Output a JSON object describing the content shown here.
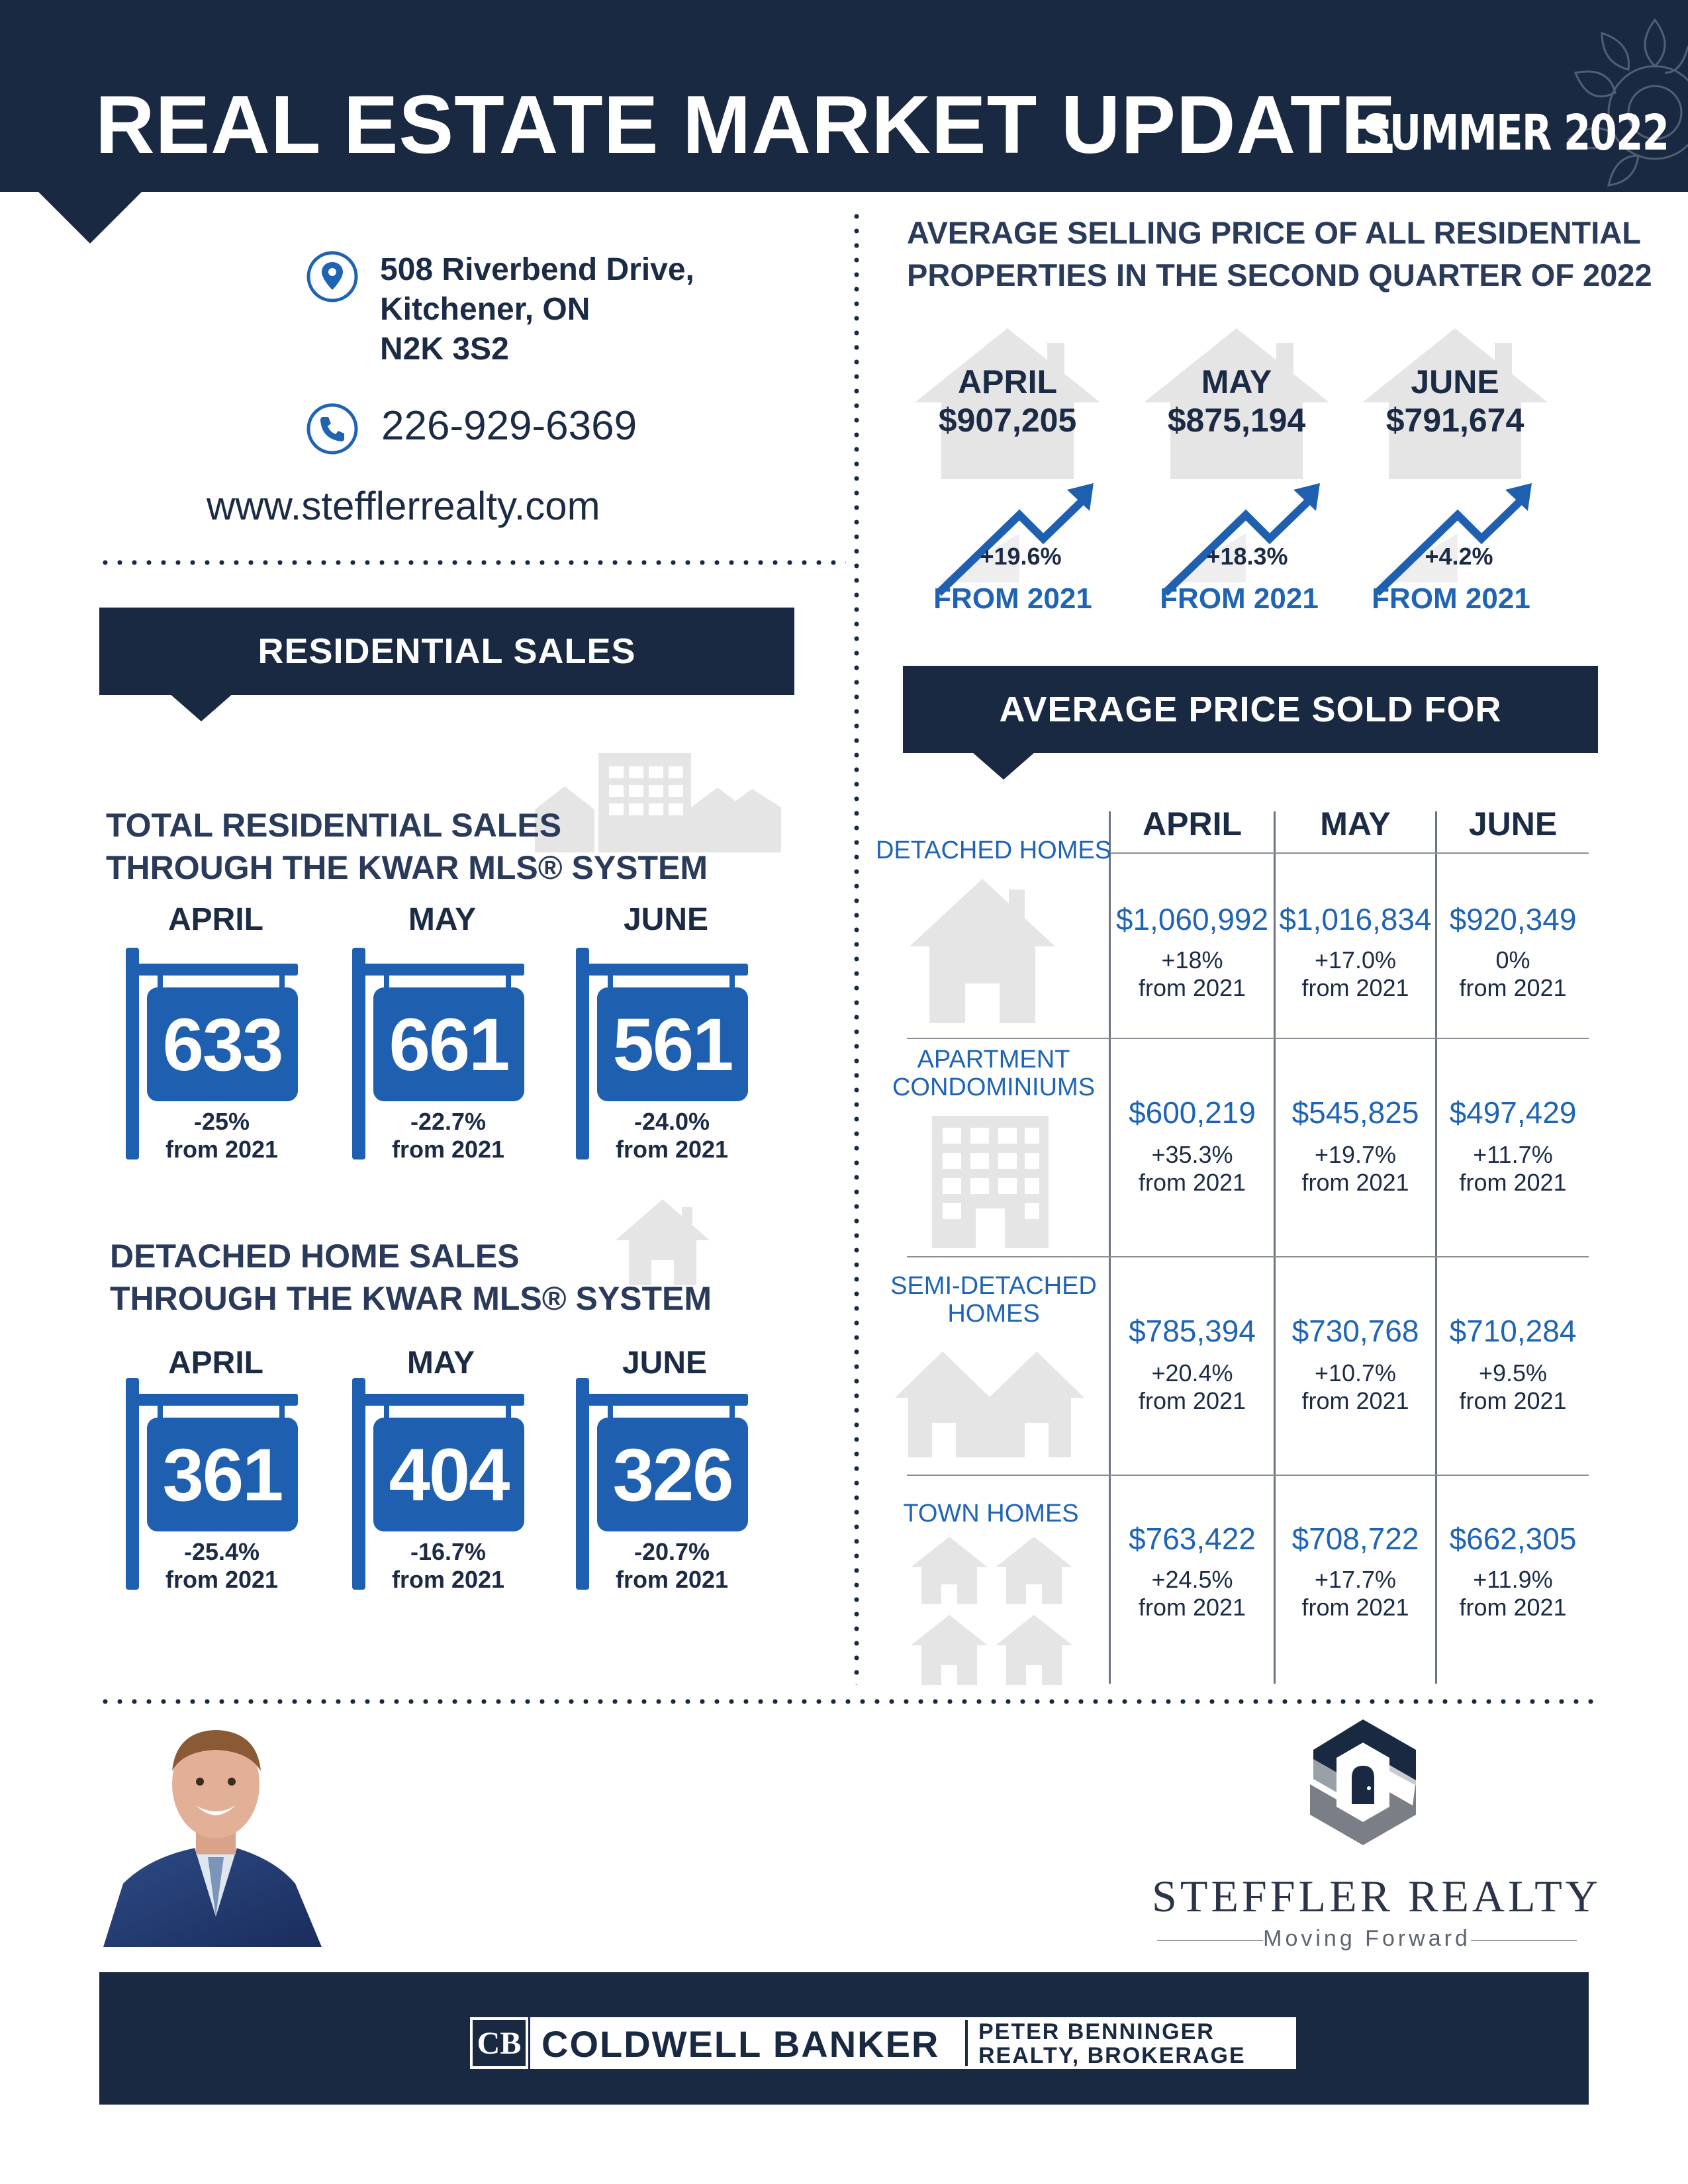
{
  "header": {
    "title": "REAL ESTATE MARKET UPDATE",
    "season": "SUMMER 2022"
  },
  "contact": {
    "address_line1": "508 Riverbend Drive,",
    "address_line2": "Kitchener, ON",
    "address_line3": "N2K 3S2",
    "phone": "226-929-6369",
    "website": "www.stefflerrealty.com"
  },
  "residential_sales": {
    "banner": "RESIDENTIAL SALES",
    "total": {
      "heading_line1": "TOTAL RESIDENTIAL SALES",
      "heading_line2": "THROUGH THE KWAR MLS® SYSTEM",
      "months": [
        {
          "label": "APRIL",
          "value": "633",
          "change": "-25%",
          "from": "from 2021"
        },
        {
          "label": "MAY",
          "value": "661",
          "change": "-22.7%",
          "from": "from 2021"
        },
        {
          "label": "JUNE",
          "value": "561",
          "change": "-24.0%",
          "from": "from 2021"
        }
      ]
    },
    "detached": {
      "heading_line1": "DETACHED HOME SALES",
      "heading_line2": "THROUGH THE KWAR MLS® SYSTEM",
      "months": [
        {
          "label": "APRIL",
          "value": "361",
          "change": "-25.4%",
          "from": "from 2021"
        },
        {
          "label": "MAY",
          "value": "404",
          "change": "-16.7%",
          "from": "from 2021"
        },
        {
          "label": "JUNE",
          "value": "326",
          "change": "-20.7%",
          "from": "from 2021"
        }
      ]
    }
  },
  "avg_selling": {
    "heading_line1": "AVERAGE SELLING PRICE OF ALL RESIDENTIAL",
    "heading_line2": "PROPERTIES IN THE SECOND QUARTER OF 2022",
    "months": [
      {
        "label": "APRIL",
        "price": "$907,205",
        "change": "+19.6%",
        "from": "FROM 2021"
      },
      {
        "label": "MAY",
        "price": "$875,194",
        "change": "+18.3%",
        "from": "FROM 2021"
      },
      {
        "label": "JUNE",
        "price": "$791,674",
        "change": "+4.2%",
        "from": "FROM 2021"
      }
    ]
  },
  "avg_price_sold": {
    "banner": "AVERAGE PRICE SOLD FOR",
    "columns": [
      "APRIL",
      "MAY",
      "JUNE"
    ],
    "rows": [
      {
        "category_line1": "DETACHED HOMES",
        "category_line2": "",
        "cells": [
          {
            "price": "$1,060,992",
            "change": "+18%",
            "from": "from 2021"
          },
          {
            "price": "$1,016,834",
            "change": "+17.0%",
            "from": "from 2021"
          },
          {
            "price": "$920,349",
            "change": "0%",
            "from": "from 2021"
          }
        ]
      },
      {
        "category_line1": "APARTMENT",
        "category_line2": "CONDOMINIUMS",
        "cells": [
          {
            "price": "$600,219",
            "change": "+35.3%",
            "from": "from 2021"
          },
          {
            "price": "$545,825",
            "change": "+19.7%",
            "from": "from 2021"
          },
          {
            "price": "$497,429",
            "change": "+11.7%",
            "from": "from 2021"
          }
        ]
      },
      {
        "category_line1": "SEMI-DETACHED",
        "category_line2": "HOMES",
        "cells": [
          {
            "price": "$785,394",
            "change": "+20.4%",
            "from": "from 2021"
          },
          {
            "price": "$730,768",
            "change": "+10.7%",
            "from": "from 2021"
          },
          {
            "price": "$710,284",
            "change": "+9.5%",
            "from": "from 2021"
          }
        ]
      },
      {
        "category_line1": "TOWN HOMES",
        "category_line2": "",
        "cells": [
          {
            "price": "$763,422",
            "change": "+24.5%",
            "from": "from 2021"
          },
          {
            "price": "$708,722",
            "change": "+17.7%",
            "from": "from 2021"
          },
          {
            "price": "$662,305",
            "change": "+11.9%",
            "from": "from 2021"
          }
        ]
      }
    ]
  },
  "brand": {
    "name": "STEFFLER REALTY",
    "tagline": "Moving Forward"
  },
  "footer": {
    "cb_monogram": "CB",
    "cb_name": "COLDWELL BANKER",
    "brokerage_line1": "PETER BENNINGER",
    "brokerage_line2": "REALTY, BROKERAGE"
  },
  "colors": {
    "navy": "#1a2942",
    "accent_blue": "#1f5fb0",
    "icon_gray": "#e5e5e5"
  }
}
